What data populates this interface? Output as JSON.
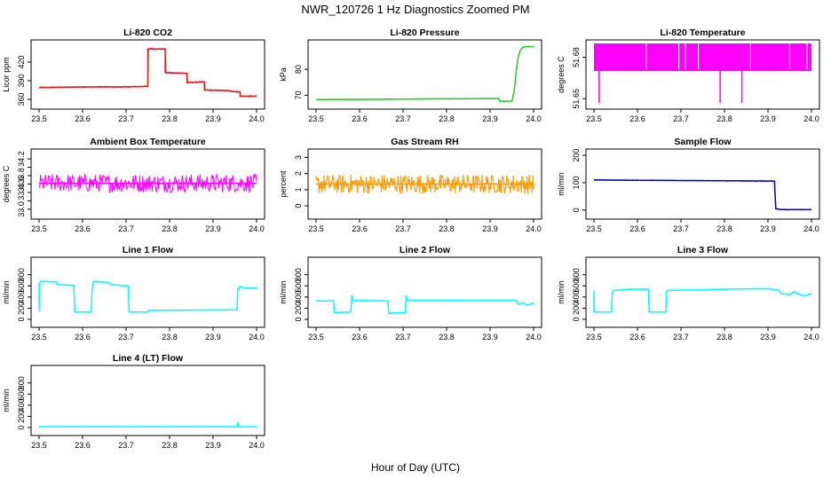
{
  "figure": {
    "title": "NWR_120726  1 Hz Diagnostics Zoomed PM",
    "xlabel": "Hour of Day (UTC)"
  },
  "chart_data": [
    {
      "type": "line",
      "title": "Li-820 CO2",
      "ylabel": "Licor ppm",
      "color": "#e31a1c",
      "xlim": [
        23.5,
        24.0
      ],
      "xticks": [
        23.5,
        23.6,
        23.7,
        23.8,
        23.9,
        24.0
      ],
      "ylim": [
        350,
        450
      ],
      "yticks": [
        360,
        390,
        420
      ],
      "ytick_labels": [
        "360",
        "390",
        "420"
      ],
      "grid": false,
      "series": [
        {
          "x": [
            23.5,
            23.6,
            23.7,
            23.75,
            23.75,
            23.76,
            23.76,
            23.79,
            23.79,
            23.84,
            23.84,
            23.88,
            23.88,
            23.94,
            23.94,
            23.962,
            23.962,
            24.0
          ],
          "y": [
            379,
            380,
            380,
            381,
            441,
            442,
            441,
            441,
            403,
            402,
            387,
            388,
            375,
            374,
            373,
            372,
            365,
            365
          ],
          "noise": 1.2
        }
      ]
    },
    {
      "type": "line",
      "title": "Li-820 Pressure",
      "ylabel": "kPa",
      "color": "#22cc22",
      "xlim": [
        23.5,
        24.0
      ],
      "xticks": [
        23.5,
        23.6,
        23.7,
        23.8,
        23.9,
        24.0
      ],
      "ylim": [
        66,
        90
      ],
      "yticks": [
        70,
        80
      ],
      "ytick_labels": [
        "70",
        "80"
      ],
      "grid": false,
      "series": [
        {
          "x": [
            23.5,
            23.6,
            23.7,
            23.8,
            23.9,
            23.92,
            23.922,
            23.95,
            23.955,
            23.96,
            23.965,
            23.97,
            23.975,
            23.98,
            24.0
          ],
          "y": [
            68.3,
            68.4,
            68.5,
            68.6,
            68.7,
            68.7,
            67.6,
            67.7,
            71,
            79,
            85,
            87.5,
            88.5,
            88.7,
            88.8
          ],
          "noise": 0.15
        }
      ]
    },
    {
      "type": "line",
      "title": "Li-820 Temperature",
      "ylabel": "degrees C",
      "color": "#ff00ff",
      "xlim": [
        23.5,
        24.0
      ],
      "xticks": [
        23.5,
        23.6,
        23.7,
        23.8,
        23.9,
        24.0
      ],
      "ylim": [
        51.645,
        51.69
      ],
      "yticks": [
        51.65,
        51.68
      ],
      "ytick_labels": [
        "51.65",
        "51.68"
      ],
      "grid": false,
      "series": [
        {
          "x": [
            23.5,
            24.0
          ],
          "y": [
            51.68,
            51.68
          ],
          "band": [
            51.67,
            51.69
          ],
          "dips": [
            23.512,
            23.79,
            23.84
          ],
          "dip_to": 51.647
        }
      ]
    },
    {
      "type": "line",
      "title": "Ambient Box Temperature",
      "ylabel": "degrees C",
      "color": "#ff00ff",
      "xlim": [
        23.5,
        24.0
      ],
      "xticks": [
        23.5,
        23.6,
        23.7,
        23.8,
        23.9,
        24.0
      ],
      "ylim": [
        32.85,
        34.35
      ],
      "yticks": [
        33.0,
        33.2,
        33.4,
        33.6,
        33.8,
        34.0,
        34.2
      ],
      "ytick_labels": [
        "33.0",
        "",
        "33.4",
        "33.6",
        "33.8",
        "",
        "34.2"
      ],
      "grid": false,
      "series": [
        {
          "x": [
            23.5,
            24.0
          ],
          "y": [
            33.62,
            33.62
          ],
          "noise": 0.22
        }
      ]
    },
    {
      "type": "line",
      "title": "Gas Stream RH",
      "ylabel": "percent",
      "color": "#ff9900",
      "xlim": [
        23.5,
        24.0
      ],
      "xticks": [
        23.5,
        23.6,
        23.7,
        23.8,
        23.9,
        24.0
      ],
      "ylim": [
        -0.6,
        3.3
      ],
      "yticks": [
        0,
        1,
        2,
        3
      ],
      "ytick_labels": [
        "0",
        "1",
        "2",
        "3"
      ],
      "grid": false,
      "markers": true,
      "series": [
        {
          "x": [
            23.5,
            24.0
          ],
          "y": [
            1.35,
            1.35
          ],
          "noise": 0.55
        }
      ]
    },
    {
      "type": "line",
      "title": "Sample Flow",
      "ylabel": "ml/min",
      "color": "#0000cc",
      "xlim": [
        23.5,
        24.0
      ],
      "xticks": [
        23.5,
        23.6,
        23.7,
        23.8,
        23.9,
        24.0
      ],
      "ylim": [
        -20,
        210
      ],
      "yticks": [
        0,
        100,
        200
      ],
      "ytick_labels": [
        "0",
        "100",
        "200"
      ],
      "grid": false,
      "series": [
        {
          "x": [
            23.5,
            23.6,
            23.7,
            23.8,
            23.9,
            23.915,
            23.918,
            23.93,
            24.0
          ],
          "y": [
            110,
            109,
            108,
            107,
            106,
            106,
            5,
            2,
            2
          ],
          "noise": 1.5
        }
      ]
    },
    {
      "type": "line",
      "title": "Line 1 Flow",
      "ylabel": "ml/min",
      "color": "#00ffff",
      "xlim": [
        23.5,
        24.0
      ],
      "xticks": [
        23.5,
        23.6,
        23.7,
        23.8,
        23.9,
        24.0
      ],
      "ylim": [
        -80,
        1050
      ],
      "yticks": [
        0,
        200,
        400,
        600,
        800
      ],
      "ytick_labels": [
        "0",
        "200",
        "400",
        "600",
        "800"
      ],
      "grid": false,
      "series": [
        {
          "x": [
            23.5,
            23.5,
            23.503,
            23.54,
            23.543,
            23.58,
            23.582,
            23.62,
            23.622,
            23.625,
            23.66,
            23.665,
            23.705,
            23.707,
            23.75,
            23.752,
            23.955,
            23.957,
            23.962,
            23.97,
            24.0
          ],
          "y": [
            140,
            620,
            680,
            670,
            620,
            610,
            130,
            130,
            560,
            680,
            660,
            620,
            600,
            130,
            130,
            160,
            170,
            550,
            590,
            560,
            560
          ],
          "noise": 8
        }
      ]
    },
    {
      "type": "line",
      "title": "Line 2 Flow",
      "ylabel": "ml/min",
      "color": "#00ffff",
      "xlim": [
        23.5,
        24.0
      ],
      "xticks": [
        23.5,
        23.6,
        23.7,
        23.8,
        23.9,
        24.0
      ],
      "ylim": [
        -80,
        1050
      ],
      "yticks": [
        0,
        200,
        400,
        600,
        800
      ],
      "ytick_labels": [
        "0",
        "200",
        "400",
        "600",
        "800"
      ],
      "grid": false,
      "series": [
        {
          "x": [
            23.5,
            23.5,
            23.54,
            23.542,
            23.58,
            23.582,
            23.585,
            23.665,
            23.667,
            23.705,
            23.707,
            23.71,
            23.96,
            23.965,
            23.975,
            23.985,
            23.995,
            24.0
          ],
          "y": [
            330,
            330,
            330,
            120,
            130,
            430,
            340,
            330,
            110,
            120,
            430,
            340,
            340,
            270,
            300,
            250,
            280,
            290
          ],
          "noise": 8
        }
      ]
    },
    {
      "type": "line",
      "title": "Line 3 Flow",
      "ylabel": "ml/min",
      "color": "#00ffff",
      "xlim": [
        23.5,
        24.0
      ],
      "xticks": [
        23.5,
        23.6,
        23.7,
        23.8,
        23.9,
        24.0
      ],
      "ylim": [
        -80,
        1050
      ],
      "yticks": [
        0,
        200,
        400,
        600,
        800
      ],
      "ytick_labels": [
        "0",
        "200",
        "400",
        "600",
        "800"
      ],
      "grid": false,
      "series": [
        {
          "x": [
            23.5,
            23.5,
            23.502,
            23.54,
            23.542,
            23.545,
            23.585,
            23.6,
            23.625,
            23.627,
            23.665,
            23.667,
            23.67,
            23.8,
            23.9,
            23.925,
            23.93,
            23.95,
            23.96,
            23.97,
            23.985,
            24.0
          ],
          "y": [
            520,
            130,
            130,
            130,
            480,
            520,
            540,
            540,
            540,
            130,
            130,
            500,
            520,
            540,
            550,
            520,
            460,
            440,
            500,
            450,
            420,
            460
          ],
          "noise": 8
        }
      ]
    },
    {
      "type": "line",
      "title": "Line 4 (LT) Flow",
      "ylabel": "ml/min",
      "color": "#00ffff",
      "xlim": [
        23.5,
        24.0
      ],
      "xticks": [
        23.5,
        23.6,
        23.7,
        23.8,
        23.9,
        24.0
      ],
      "ylim": [
        -80,
        1050
      ],
      "yticks": [
        0,
        200,
        400,
        600,
        800
      ],
      "ytick_labels": [
        "0",
        "200",
        "400",
        "600",
        "800"
      ],
      "grid": false,
      "series": [
        {
          "x": [
            23.5,
            23.955,
            23.957,
            23.959,
            23.961,
            24.0
          ],
          "y": [
            15,
            15,
            90,
            20,
            15,
            15
          ],
          "noise": 1
        }
      ]
    }
  ]
}
